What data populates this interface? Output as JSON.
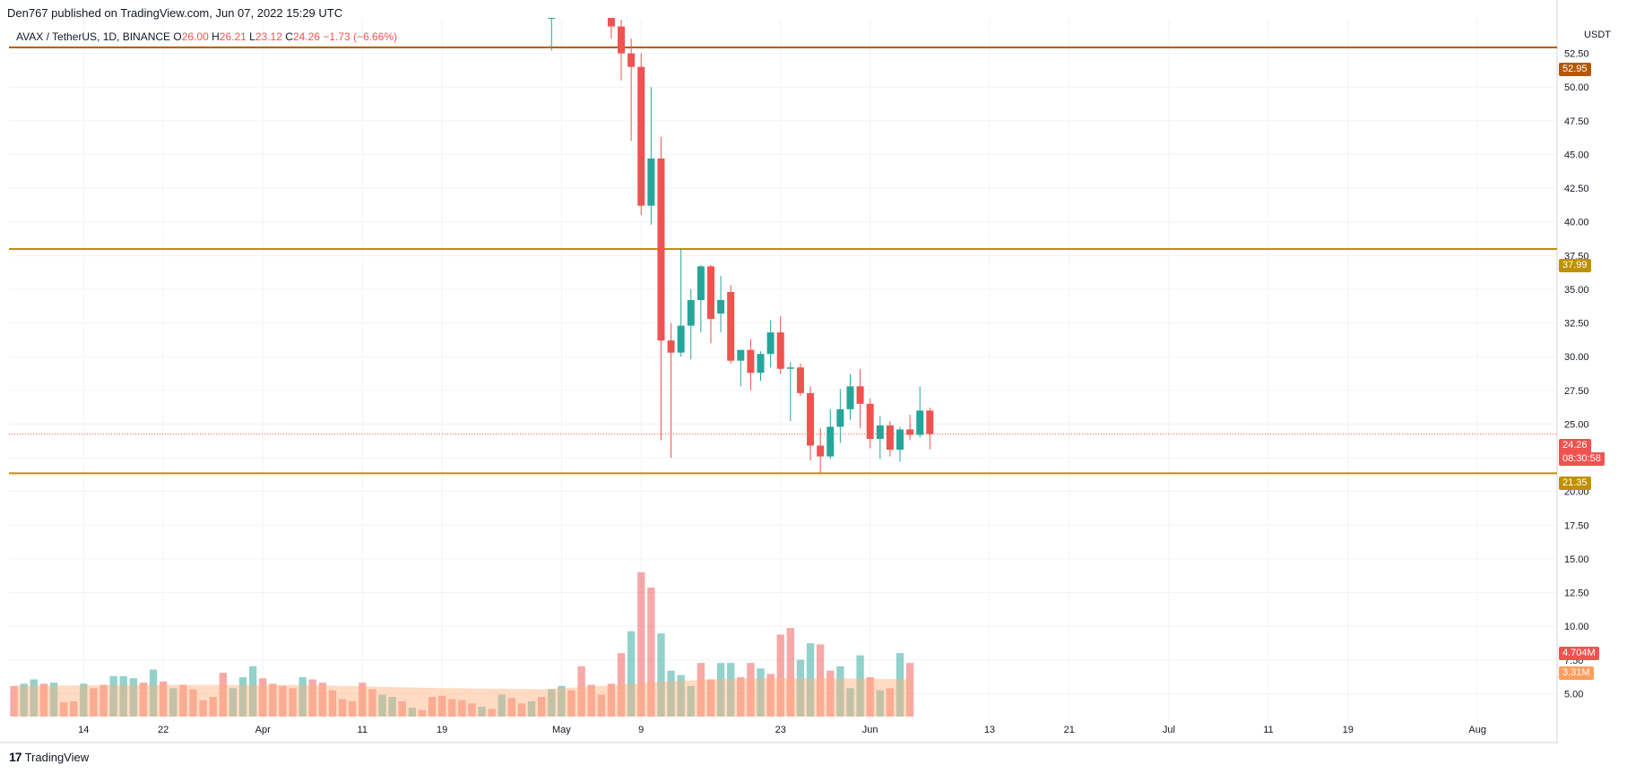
{
  "header": {
    "published": "Den767 published on TradingView.com, Jun 07, 2022 15:29 UTC"
  },
  "symbol_bar": {
    "name": "AVAX / TetherUS, 1D, BINANCE",
    "o_label": "O",
    "o_value": "26.00",
    "h_label": "H",
    "h_value": "26.21",
    "l_label": "L",
    "l_value": "23.12",
    "c_label": "C",
    "c_value": "24.26",
    "change": "−1.73 (−6.66%)"
  },
  "price_scale": {
    "currency": "USDT"
  },
  "tags": {
    "res_high": "52.95",
    "res_mid": "37.99",
    "support": "21.35",
    "last_price": "24.26",
    "countdown": "08:30:58",
    "volume": "4.704M",
    "volume_ma": "3.31M"
  },
  "brand": {
    "label": "TradingView"
  },
  "colors": {
    "up": "#26a69a",
    "down": "#ef5350",
    "level_high": "#b35806",
    "level_mid": "#bf9000",
    "level_support": "#bf9000",
    "vol_ma": "#ffb07a"
  },
  "chart_data": {
    "type": "candlestick",
    "title": "AVAX / TetherUS, 1D, BINANCE",
    "ylim": [
      2.5,
      55
    ],
    "y_ticks": [
      "5.00",
      "7.50",
      "10.00",
      "12.50",
      "15.00",
      "17.50",
      "20.00",
      "22.50",
      "25.00",
      "27.50",
      "30.00",
      "32.50",
      "35.00",
      "37.50",
      "40.00",
      "42.50",
      "45.00",
      "47.50",
      "50.00",
      "52.50"
    ],
    "x_ticks": [
      {
        "label": "14",
        "day": 14
      },
      {
        "label": "22",
        "day": 22
      },
      {
        "label": "Apr",
        "day": 32
      },
      {
        "label": "11",
        "day": 42
      },
      {
        "label": "19",
        "day": 50
      },
      {
        "label": "May",
        "day": 62
      },
      {
        "label": "9",
        "day": 70
      },
      {
        "label": "23",
        "day": 84
      },
      {
        "label": "Jun",
        "day": 93
      },
      {
        "label": "13",
        "day": 105
      },
      {
        "label": "21",
        "day": 113
      },
      {
        "label": "Jul",
        "day": 123
      },
      {
        "label": "11",
        "day": 133
      },
      {
        "label": "19",
        "day": 141
      },
      {
        "label": "Aug",
        "day": 154
      }
    ],
    "x_range_days": [
      6.5,
      162
    ],
    "levels": [
      {
        "name": "resistance-high",
        "value": 52.95
      },
      {
        "name": "resistance-mid",
        "value": 37.99
      },
      {
        "name": "support",
        "value": 21.35
      },
      {
        "name": "last-price",
        "value": 24.26
      }
    ],
    "candles": [
      {
        "day": 61,
        "o": 56,
        "h": 58,
        "l": 52.7,
        "c": 56
      },
      {
        "day": 67,
        "o": 57,
        "h": 58,
        "l": 53.6,
        "c": 54.5
      },
      {
        "day": 68,
        "o": 54.5,
        "h": 55,
        "l": 50.5,
        "c": 52.5
      },
      {
        "day": 69,
        "o": 52.5,
        "h": 53.6,
        "l": 46,
        "c": 51.5
      },
      {
        "day": 70,
        "o": 51.5,
        "h": 52.5,
        "l": 40.5,
        "c": 41.2
      },
      {
        "day": 71,
        "o": 41.2,
        "h": 50,
        "l": 39.8,
        "c": 44.7
      },
      {
        "day": 72,
        "o": 44.7,
        "h": 46.3,
        "l": 23.8,
        "c": 31.2
      },
      {
        "day": 73,
        "o": 31.2,
        "h": 32.5,
        "l": 22.5,
        "c": 30.3
      },
      {
        "day": 74,
        "o": 30.3,
        "h": 38,
        "l": 30,
        "c": 32.3
      },
      {
        "day": 75,
        "o": 32.3,
        "h": 35,
        "l": 29.8,
        "c": 34.2
      },
      {
        "day": 76,
        "o": 34.2,
        "h": 36.8,
        "l": 31.8,
        "c": 36.7
      },
      {
        "day": 77,
        "o": 36.7,
        "h": 36.8,
        "l": 31,
        "c": 32.8
      },
      {
        "day": 78,
        "o": 33.2,
        "h": 36,
        "l": 31.8,
        "c": 34.2
      },
      {
        "day": 79,
        "o": 34.8,
        "h": 35.3,
        "l": 29.5,
        "c": 29.7
      },
      {
        "day": 80,
        "o": 29.7,
        "h": 30.5,
        "l": 27.8,
        "c": 30.5
      },
      {
        "day": 81,
        "o": 30.5,
        "h": 31.3,
        "l": 27.5,
        "c": 28.8
      },
      {
        "day": 82,
        "o": 28.8,
        "h": 30.4,
        "l": 28.2,
        "c": 30.2
      },
      {
        "day": 83,
        "o": 30.2,
        "h": 32.7,
        "l": 29.2,
        "c": 31.8
      },
      {
        "day": 84,
        "o": 31.8,
        "h": 33,
        "l": 28.7,
        "c": 29.1
      },
      {
        "day": 85,
        "o": 29.1,
        "h": 29.6,
        "l": 25.2,
        "c": 29.2
      },
      {
        "day": 86,
        "o": 29.2,
        "h": 29.5,
        "l": 27.1,
        "c": 27.3
      },
      {
        "day": 87,
        "o": 27.3,
        "h": 27.8,
        "l": 22.3,
        "c": 23.4
      },
      {
        "day": 88,
        "o": 23.4,
        "h": 24.7,
        "l": 21.3,
        "c": 22.6
      },
      {
        "day": 89,
        "o": 22.6,
        "h": 26.1,
        "l": 22.4,
        "c": 24.8
      },
      {
        "day": 90,
        "o": 24.8,
        "h": 27.6,
        "l": 23.6,
        "c": 26.1
      },
      {
        "day": 91,
        "o": 26.1,
        "h": 28.7,
        "l": 25.3,
        "c": 27.8
      },
      {
        "day": 92,
        "o": 27.8,
        "h": 29.1,
        "l": 24.7,
        "c": 26.5
      },
      {
        "day": 93,
        "o": 26.5,
        "h": 26.9,
        "l": 23.2,
        "c": 23.9
      },
      {
        "day": 94,
        "o": 23.9,
        "h": 25.6,
        "l": 22.4,
        "c": 24.9
      },
      {
        "day": 95,
        "o": 24.9,
        "h": 25.2,
        "l": 22.6,
        "c": 23.1
      },
      {
        "day": 96,
        "o": 23.1,
        "h": 24.8,
        "l": 22.2,
        "c": 24.6
      },
      {
        "day": 97,
        "o": 24.6,
        "h": 25.7,
        "l": 23.8,
        "c": 24.2
      },
      {
        "day": 98,
        "o": 24.2,
        "h": 27.8,
        "l": 24,
        "c": 26
      },
      {
        "day": 99,
        "o": 26,
        "h": 26.21,
        "l": 23.12,
        "c": 24.26
      }
    ],
    "volume_scale_top": 17.5,
    "volume": [
      {
        "day": 7,
        "v": 2.8,
        "up": false
      },
      {
        "day": 8,
        "v": 3.0,
        "up": true
      },
      {
        "day": 9,
        "v": 3.4,
        "up": true
      },
      {
        "day": 10,
        "v": 3.0,
        "up": false
      },
      {
        "day": 11,
        "v": 3.1,
        "up": true
      },
      {
        "day": 12,
        "v": 1.3,
        "up": false
      },
      {
        "day": 13,
        "v": 1.4,
        "up": false
      },
      {
        "day": 14,
        "v": 3.0,
        "up": true
      },
      {
        "day": 15,
        "v": 2.6,
        "up": false
      },
      {
        "day": 16,
        "v": 2.9,
        "up": false
      },
      {
        "day": 17,
        "v": 3.7,
        "up": true
      },
      {
        "day": 18,
        "v": 3.7,
        "up": true
      },
      {
        "day": 19,
        "v": 3.5,
        "up": true
      },
      {
        "day": 20,
        "v": 3.1,
        "up": false
      },
      {
        "day": 21,
        "v": 4.3,
        "up": true
      },
      {
        "day": 22,
        "v": 3.2,
        "up": false
      },
      {
        "day": 23,
        "v": 2.6,
        "up": true
      },
      {
        "day": 24,
        "v": 2.9,
        "up": false
      },
      {
        "day": 25,
        "v": 2.5,
        "up": false
      },
      {
        "day": 26,
        "v": 1.5,
        "up": false
      },
      {
        "day": 27,
        "v": 1.8,
        "up": false
      },
      {
        "day": 28,
        "v": 4.0,
        "up": false
      },
      {
        "day": 29,
        "v": 2.6,
        "up": true
      },
      {
        "day": 30,
        "v": 3.6,
        "up": true
      },
      {
        "day": 31,
        "v": 4.6,
        "up": true
      },
      {
        "day": 32,
        "v": 3.5,
        "up": false
      },
      {
        "day": 33,
        "v": 3.0,
        "up": false
      },
      {
        "day": 34,
        "v": 2.8,
        "up": false
      },
      {
        "day": 35,
        "v": 2.6,
        "up": false
      },
      {
        "day": 36,
        "v": 3.6,
        "up": true
      },
      {
        "day": 37,
        "v": 3.4,
        "up": false
      },
      {
        "day": 38,
        "v": 3.1,
        "up": false
      },
      {
        "day": 39,
        "v": 2.4,
        "up": false
      },
      {
        "day": 40,
        "v": 1.6,
        "up": false
      },
      {
        "day": 41,
        "v": 1.4,
        "up": false
      },
      {
        "day": 42,
        "v": 3.1,
        "up": false
      },
      {
        "day": 43,
        "v": 2.5,
        "up": false
      },
      {
        "day": 44,
        "v": 2.0,
        "up": true
      },
      {
        "day": 45,
        "v": 1.8,
        "up": true
      },
      {
        "day": 46,
        "v": 1.4,
        "up": false
      },
      {
        "day": 47,
        "v": 0.8,
        "up": true
      },
      {
        "day": 48,
        "v": 0.6,
        "up": false
      },
      {
        "day": 49,
        "v": 1.8,
        "up": false
      },
      {
        "day": 50,
        "v": 1.9,
        "up": false
      },
      {
        "day": 51,
        "v": 1.6,
        "up": false
      },
      {
        "day": 52,
        "v": 1.5,
        "up": false
      },
      {
        "day": 53,
        "v": 1.2,
        "up": false
      },
      {
        "day": 54,
        "v": 0.9,
        "up": true
      },
      {
        "day": 55,
        "v": 0.7,
        "up": false
      },
      {
        "day": 56,
        "v": 2.0,
        "up": true
      },
      {
        "day": 57,
        "v": 1.7,
        "up": false
      },
      {
        "day": 58,
        "v": 1.2,
        "up": false
      },
      {
        "day": 59,
        "v": 1.4,
        "up": true
      },
      {
        "day": 60,
        "v": 1.8,
        "up": false
      },
      {
        "day": 61,
        "v": 2.5,
        "up": true
      },
      {
        "day": 62,
        "v": 2.8,
        "up": true
      },
      {
        "day": 63,
        "v": 2.4,
        "up": false
      },
      {
        "day": 64,
        "v": 4.6,
        "up": false
      },
      {
        "day": 65,
        "v": 2.9,
        "up": false
      },
      {
        "day": 66,
        "v": 2.0,
        "up": false
      },
      {
        "day": 67,
        "v": 3.0,
        "up": false
      },
      {
        "day": 68,
        "v": 5.8,
        "up": false
      },
      {
        "day": 69,
        "v": 7.8,
        "up": true
      },
      {
        "day": 70,
        "v": 13.2,
        "up": false
      },
      {
        "day": 71,
        "v": 11.8,
        "up": false
      },
      {
        "day": 72,
        "v": 7.6,
        "up": true
      },
      {
        "day": 73,
        "v": 4.2,
        "up": true
      },
      {
        "day": 74,
        "v": 3.8,
        "up": true
      },
      {
        "day": 75,
        "v": 2.8,
        "up": true
      },
      {
        "day": 76,
        "v": 4.9,
        "up": false
      },
      {
        "day": 77,
        "v": 3.4,
        "up": false
      },
      {
        "day": 78,
        "v": 4.9,
        "up": true
      },
      {
        "day": 79,
        "v": 4.9,
        "up": true
      },
      {
        "day": 80,
        "v": 3.6,
        "up": false
      },
      {
        "day": 81,
        "v": 4.9,
        "up": false
      },
      {
        "day": 82,
        "v": 4.4,
        "up": true
      },
      {
        "day": 83,
        "v": 3.9,
        "up": false
      },
      {
        "day": 84,
        "v": 7.5,
        "up": false
      },
      {
        "day": 85,
        "v": 8.1,
        "up": false
      },
      {
        "day": 86,
        "v": 5.2,
        "up": true
      },
      {
        "day": 87,
        "v": 6.7,
        "up": true
      },
      {
        "day": 88,
        "v": 6.6,
        "up": false
      },
      {
        "day": 89,
        "v": 4.2,
        "up": false
      },
      {
        "day": 90,
        "v": 4.6,
        "up": true
      },
      {
        "day": 91,
        "v": 2.6,
        "up": true
      },
      {
        "day": 92,
        "v": 5.6,
        "up": true
      },
      {
        "day": 93,
        "v": 3.6,
        "up": false
      },
      {
        "day": 94,
        "v": 2.4,
        "up": true
      },
      {
        "day": 95,
        "v": 2.6,
        "up": false
      },
      {
        "day": 96,
        "v": 5.8,
        "up": true
      },
      {
        "day": 97,
        "v": 4.9,
        "up": false
      }
    ],
    "volume_ma": [
      {
        "day": 7,
        "v": 2.8
      },
      {
        "day": 20,
        "v": 2.9
      },
      {
        "day": 35,
        "v": 2.9
      },
      {
        "day": 50,
        "v": 2.6
      },
      {
        "day": 60,
        "v": 2.5
      },
      {
        "day": 68,
        "v": 2.9
      },
      {
        "day": 72,
        "v": 3.2
      },
      {
        "day": 80,
        "v": 3.5
      },
      {
        "day": 90,
        "v": 3.5
      },
      {
        "day": 97,
        "v": 3.4
      }
    ]
  }
}
